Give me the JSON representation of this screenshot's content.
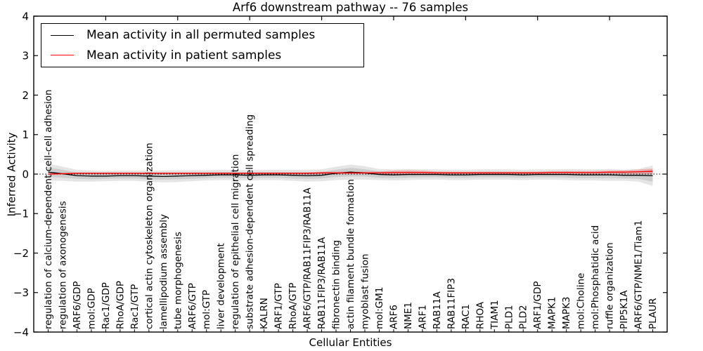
{
  "title": "Arf6 downstream pathway -- 76 samples",
  "legend": {
    "items": [
      {
        "label": "Mean activity in all permuted samples",
        "color": "#000000"
      },
      {
        "label": "Mean activity in patient samples",
        "color": "#ff0000"
      }
    ]
  },
  "chart_data": {
    "type": "line",
    "title": "Arf6 downstream pathway -- 76 samples",
    "xlabel": "Cellular Entities",
    "ylabel": "Inferred Activity",
    "ylim": [
      -4,
      4
    ],
    "yticks": [
      4,
      3,
      2,
      1,
      0,
      -1,
      -2,
      -3,
      -4
    ],
    "ytick_labels": [
      "4",
      "3",
      "2",
      "1",
      "0",
      "−1",
      "−2",
      "−3",
      "−4"
    ],
    "grid": false,
    "legend_position": "upper left",
    "zero_line": {
      "y": 0,
      "style": "dotted",
      "color": "#000000"
    },
    "categories": [
      "regulation of calcium-dependent cell-cell adhesion",
      "regulation of axonogenesis",
      "ARF6/GDP",
      "mol:GDP",
      "Rac1/GDP",
      "RhoA/GDP",
      "Rac1/GTP",
      "cortical actin cytoskeleton organization",
      "lamellipodium assembly",
      "tube morphogenesis",
      "ARF6/GTP",
      "mol:GTP",
      "liver development",
      "regulation of epithelial cell migration",
      "substrate adhesion-dependent cell spreading",
      "KALRN",
      "ARF1/GTP",
      "RhoA/GTP",
      "ARF6/GTP/RAB11FIP3/RAB11A",
      "RAB11FIP3/RAB11A",
      "fibronectin binding",
      "actin filament bundle formation",
      "myoblast fusion",
      "mol:GM1",
      "ARF6",
      "NME1",
      "ARF1",
      "RAB11A",
      "RAB11FIP3",
      "RAC1",
      "RHOA",
      "TIAM1",
      "PLD1",
      "PLD2",
      "ARF1/GDP",
      "MAPK1",
      "MAPK3",
      "mol:Choline",
      "mol:Phosphatidic acid",
      "ruffle organization",
      "PIP5K1A",
      "ARF6/GTP/NME1/Tiam1",
      "PLAUR"
    ],
    "series": [
      {
        "key": "permuted",
        "name": "Mean activity in all permuted samples",
        "color": "#000000",
        "values": [
          0.05,
          0.01,
          -0.04,
          -0.05,
          -0.05,
          -0.04,
          -0.04,
          -0.05,
          -0.06,
          -0.05,
          -0.04,
          -0.03,
          -0.02,
          -0.02,
          -0.03,
          -0.02,
          -0.02,
          -0.03,
          -0.04,
          -0.03,
          0.02,
          0.05,
          0.03,
          -0.01,
          -0.02,
          -0.01,
          -0.01,
          -0.01,
          -0.02,
          -0.02,
          -0.01,
          -0.01,
          -0.01,
          -0.02,
          -0.01,
          -0.01,
          -0.01,
          -0.02,
          -0.02,
          -0.02,
          -0.03,
          -0.03,
          -0.04
        ]
      },
      {
        "key": "patient",
        "name": "Mean activity in patient samples",
        "color": "#ff0000",
        "values": [
          0.0,
          0.01,
          0.02,
          0.02,
          0.02,
          0.02,
          0.02,
          0.02,
          0.02,
          0.02,
          0.02,
          0.02,
          0.02,
          0.02,
          0.02,
          0.02,
          0.02,
          0.02,
          0.02,
          0.03,
          0.03,
          0.03,
          0.03,
          0.03,
          0.04,
          0.04,
          0.04,
          0.03,
          0.03,
          0.03,
          0.03,
          0.03,
          0.03,
          0.03,
          0.03,
          0.04,
          0.04,
          0.04,
          0.04,
          0.05,
          0.05,
          0.06,
          0.07
        ]
      }
    ],
    "bands": [
      {
        "key": "permuted-outer",
        "name": "permuted samples envelope (outer)",
        "center": "permuted",
        "color": "rgba(0,0,0,0.10)",
        "half_width": [
          0.22,
          0.18,
          0.15,
          0.14,
          0.13,
          0.13,
          0.13,
          0.14,
          0.15,
          0.15,
          0.14,
          0.13,
          0.13,
          0.13,
          0.13,
          0.13,
          0.13,
          0.14,
          0.15,
          0.15,
          0.17,
          0.19,
          0.17,
          0.14,
          0.14,
          0.14,
          0.13,
          0.13,
          0.13,
          0.13,
          0.13,
          0.13,
          0.13,
          0.13,
          0.13,
          0.13,
          0.14,
          0.14,
          0.14,
          0.15,
          0.14,
          0.16,
          0.26
        ]
      },
      {
        "key": "permuted-inner",
        "name": "permuted samples envelope (inner)",
        "center": "permuted",
        "color": "rgba(0,0,0,0.10)",
        "half_width": [
          0.12,
          0.1,
          0.08,
          0.08,
          0.07,
          0.07,
          0.07,
          0.08,
          0.08,
          0.08,
          0.08,
          0.07,
          0.07,
          0.07,
          0.07,
          0.07,
          0.07,
          0.08,
          0.08,
          0.08,
          0.09,
          0.11,
          0.09,
          0.08,
          0.08,
          0.08,
          0.07,
          0.07,
          0.07,
          0.07,
          0.07,
          0.07,
          0.07,
          0.07,
          0.07,
          0.07,
          0.08,
          0.08,
          0.08,
          0.08,
          0.08,
          0.09,
          0.15
        ]
      },
      {
        "key": "patient-band",
        "name": "patient samples envelope",
        "center": "patient",
        "color": "rgba(255,0,0,0.22)",
        "half_width": [
          0.02,
          0.02,
          0.025,
          0.025,
          0.025,
          0.025,
          0.025,
          0.025,
          0.025,
          0.025,
          0.025,
          0.025,
          0.025,
          0.025,
          0.025,
          0.025,
          0.025,
          0.025,
          0.03,
          0.03,
          0.03,
          0.03,
          0.03,
          0.035,
          0.05,
          0.055,
          0.05,
          0.035,
          0.03,
          0.03,
          0.03,
          0.03,
          0.03,
          0.03,
          0.03,
          0.035,
          0.035,
          0.035,
          0.04,
          0.04,
          0.045,
          0.055,
          0.07
        ]
      }
    ]
  }
}
